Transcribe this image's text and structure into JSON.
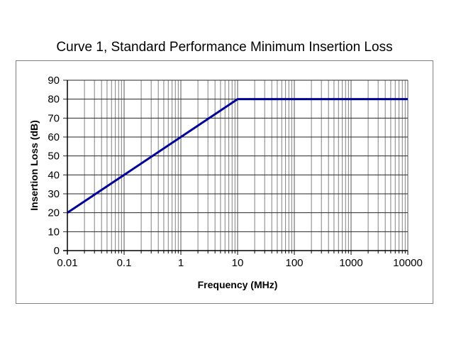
{
  "chart_data": {
    "type": "line",
    "title": "Curve 1, Standard Performance Minimum Insertion Loss",
    "xlabel": "Frequency (MHz)",
    "ylabel": "Insertion Loss (dB)",
    "x_scale": "log",
    "xlim": [
      0.01,
      10000
    ],
    "x_ticks": [
      0.01,
      0.1,
      1,
      10,
      100,
      1000,
      10000
    ],
    "x_tick_labels": [
      "0.01",
      "0.1",
      "1",
      "10",
      "100",
      "1000",
      "10000"
    ],
    "ylim": [
      0,
      90
    ],
    "y_ticks": [
      0,
      10,
      20,
      30,
      40,
      50,
      60,
      70,
      80,
      90
    ],
    "grid": {
      "horizontal": "major lines every 10 dB",
      "vertical": "log decades with minor lines 2-9 per decade",
      "legend": "none"
    },
    "series": [
      {
        "name": "Curve 1 minimum insertion loss",
        "color": "#000099",
        "line_width": 3,
        "points": [
          [
            0.01,
            20
          ],
          [
            0.1,
            40
          ],
          [
            1,
            60
          ],
          [
            10,
            80
          ],
          [
            100,
            80
          ],
          [
            1000,
            80
          ],
          [
            10000,
            80
          ]
        ]
      }
    ],
    "colors": {
      "line": "#000099",
      "h_grid": "#262626",
      "v_grid_major": "#595959",
      "v_grid_minor": "#808080",
      "axis": "#000000",
      "box_border": "#808080",
      "background": "#ffffff",
      "text": "#000000"
    }
  }
}
